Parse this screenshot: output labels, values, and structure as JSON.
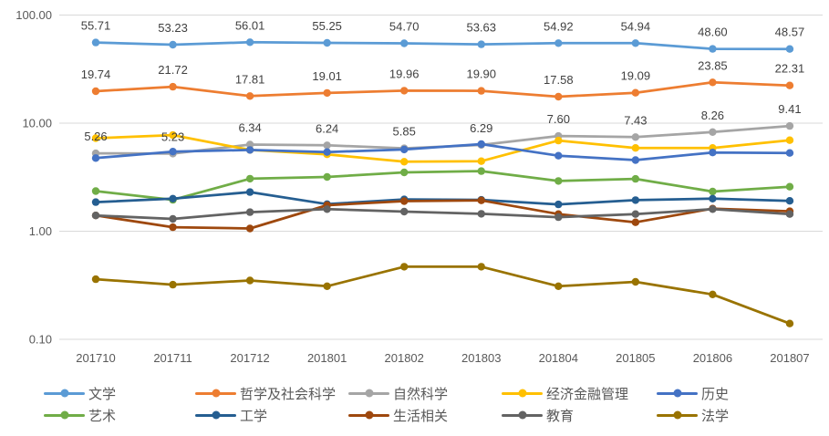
{
  "chart_data": {
    "type": "line",
    "title": "",
    "xlabel": "",
    "ylabel": "",
    "scale": "log",
    "ylim": [
      0.1,
      100
    ],
    "grid": "horizontal-only",
    "grid_color": "#D9D9D9",
    "axis_text_color": "#595959",
    "data_label_color": "#404040",
    "legend_position": "bottom",
    "x": [
      "201710",
      "201711",
      "201712",
      "201801",
      "201802",
      "201803",
      "201804",
      "201805",
      "201806",
      "201807"
    ],
    "yticks": [
      100,
      10,
      1,
      0.1
    ],
    "ytick_labels": [
      "100.00",
      "10.00",
      "1.00",
      "0.10"
    ],
    "series": [
      {
        "name": "文学",
        "slug": "literature",
        "color": "#5B9BD5",
        "values": [
          55.71,
          53.23,
          56.01,
          55.25,
          54.7,
          53.63,
          54.92,
          54.94,
          48.6,
          48.57
        ],
        "data_labels": [
          "55.71",
          "53.23",
          "56.01",
          "55.25",
          "54.70",
          "53.63",
          "54.92",
          "54.94",
          "48.60",
          "48.57"
        ]
      },
      {
        "name": "哲学及社会科学",
        "slug": "philosophy-social-sciences",
        "color": "#ED7D31",
        "values": [
          19.74,
          21.72,
          17.81,
          19.01,
          19.96,
          19.9,
          17.58,
          19.09,
          23.85,
          22.31
        ],
        "data_labels": [
          "19.74",
          "21.72",
          "17.81",
          "19.01",
          "19.96",
          "19.90",
          "17.58",
          "19.09",
          "23.85",
          "22.31"
        ]
      },
      {
        "name": "自然科学",
        "slug": "natural-science",
        "color": "#A5A5A5",
        "values": [
          5.26,
          5.23,
          6.34,
          6.24,
          5.85,
          6.29,
          7.6,
          7.43,
          8.26,
          9.41
        ],
        "data_labels": [
          "5.26",
          "5.23",
          "6.34",
          "6.24",
          "5.85",
          "6.29",
          "7.60",
          "7.43",
          "8.26",
          "9.41"
        ]
      },
      {
        "name": "经济金融管理",
        "slug": "economics-finance-management",
        "color": "#FFC000",
        "values": [
          7.25,
          7.75,
          5.65,
          5.15,
          4.4,
          4.45,
          6.9,
          5.9,
          5.9,
          6.95
        ]
      },
      {
        "name": "历史",
        "slug": "history",
        "color": "#4472C4",
        "values": [
          4.75,
          5.45,
          5.65,
          5.4,
          5.7,
          6.4,
          5.0,
          4.55,
          5.35,
          5.3
        ]
      },
      {
        "name": "艺术",
        "slug": "art",
        "color": "#70AD47",
        "values": [
          2.35,
          1.95,
          3.06,
          3.18,
          3.5,
          3.6,
          2.92,
          3.05,
          2.33,
          2.58
        ]
      },
      {
        "name": "工学",
        "slug": "engineering",
        "color": "#255E91",
        "values": [
          1.86,
          2.0,
          2.3,
          1.78,
          1.97,
          1.95,
          1.77,
          1.94,
          2.0,
          1.91
        ]
      },
      {
        "name": "生活相关",
        "slug": "life-related",
        "color": "#9E480E",
        "values": [
          1.4,
          1.09,
          1.06,
          1.74,
          1.9,
          1.93,
          1.44,
          1.21,
          1.62,
          1.53
        ]
      },
      {
        "name": "教育",
        "slug": "education",
        "color": "#636363",
        "values": [
          1.4,
          1.3,
          1.5,
          1.6,
          1.52,
          1.45,
          1.35,
          1.44,
          1.6,
          1.44
        ]
      },
      {
        "name": "法学",
        "slug": "law",
        "color": "#997300",
        "values": [
          0.36,
          0.32,
          0.35,
          0.31,
          0.47,
          0.47,
          0.31,
          0.34,
          0.26,
          0.14
        ]
      }
    ]
  }
}
